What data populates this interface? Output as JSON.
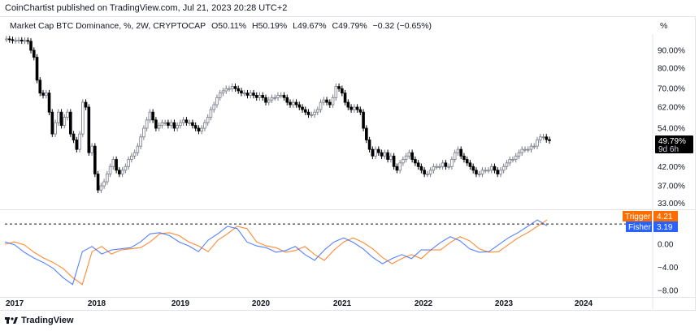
{
  "header": {
    "published": "CoinChartist published on TradingView.com, Jul 21, 2023 20:28 UTC+2"
  },
  "legend": {
    "symbol": "Market Cap BTC Dominance, %, 2W, CRYPTOCAP",
    "open": "O50.11%",
    "high": "H50.19%",
    "low": "L49.67%",
    "close": "C49.79%",
    "change": "−0.32 (−0.65%)"
  },
  "axis_unit": "%",
  "price_tag": {
    "value": "49.79%",
    "countdown": "9d 6h"
  },
  "indicator_labels": {
    "trigger": {
      "name": "Trigger",
      "value": "4.21",
      "color": "#ff6d00"
    },
    "fisher": {
      "name": "Fisher",
      "value": "3.19",
      "color": "#2962ff"
    }
  },
  "footer": {
    "brand": "TradingView"
  },
  "chart_data": [
    {
      "type": "candlestick",
      "title": "Market Cap BTC Dominance, %, 2W, CRYPTOCAP",
      "interval": "2W",
      "yscale": "log",
      "yticks": [
        "90.00%",
        "80.00%",
        "70.00%",
        "62.00%",
        "54.00%",
        "42.00%",
        "37.00%",
        "33.00%"
      ],
      "ytick_values": [
        90,
        80,
        70,
        62,
        54,
        42,
        37,
        33
      ],
      "ylim": [
        31,
        100
      ],
      "xticks": [
        "2017",
        "2018",
        "2019",
        "2020",
        "2021",
        "2022",
        "2023",
        "2024"
      ],
      "closes": [
        97,
        96.5,
        96,
        96,
        96.2,
        95.8,
        96,
        95.5,
        90,
        86,
        74,
        68,
        67,
        68,
        60,
        52,
        56,
        60,
        55,
        58,
        60,
        52,
        50,
        47,
        52,
        64,
        62,
        46,
        48,
        40,
        36,
        37,
        38,
        40,
        42,
        44,
        41,
        40,
        41,
        42,
        44,
        45,
        46,
        48,
        51,
        54,
        57,
        60,
        57,
        54,
        55,
        56,
        56,
        55,
        56,
        54,
        55,
        56,
        57,
        56,
        56,
        55,
        54,
        53,
        54,
        56,
        58,
        61,
        63,
        66,
        68,
        69,
        70,
        70,
        71,
        70,
        69,
        68,
        68,
        67,
        68,
        67,
        66,
        67,
        66,
        64,
        65,
        66,
        66,
        67,
        67,
        66,
        64,
        63,
        64,
        63,
        62,
        61,
        60,
        59,
        59,
        60,
        61,
        64,
        65,
        64,
        63,
        66,
        71,
        70,
        68,
        64,
        62,
        61,
        62,
        61,
        60,
        54,
        50,
        47,
        45,
        47,
        46,
        45,
        46,
        44,
        45,
        42,
        41,
        43,
        44,
        45,
        46,
        44,
        43,
        42,
        41,
        40,
        40,
        41,
        42,
        42,
        42,
        43,
        42,
        42,
        44,
        46,
        47,
        45,
        44,
        43,
        42,
        41,
        40,
        40,
        41,
        41,
        41,
        42,
        41,
        40,
        41,
        42,
        43,
        44,
        44,
        45,
        46,
        47,
        47,
        47,
        48,
        48,
        50,
        51,
        51,
        50.11,
        49.79
      ],
      "last_close": 49.79
    },
    {
      "type": "line",
      "title": "Fisher Transform",
      "yticks": [
        "0.00",
        "−4.00",
        "−8.00"
      ],
      "ytick_values": [
        0,
        -4,
        -8
      ],
      "ylim": [
        -9,
        5.5
      ],
      "reference_level": 3.5,
      "series": [
        {
          "name": "Fisher",
          "color": "#2962ff",
          "values": [
            0.4,
            -0.1,
            -1.4,
            -2.4,
            -3.2,
            -4.2,
            -5.8,
            -7.0,
            -1.3,
            -0.4,
            -1.7,
            -1.0,
            -0.8,
            -0.6,
            0.4,
            1.8,
            2.0,
            1.5,
            0.4,
            -0.3,
            -1.3,
            0.7,
            1.8,
            3.1,
            2.7,
            0.4,
            -0.3,
            -0.6,
            -1.4,
            -1.1,
            -0.4,
            -1.8,
            -2.8,
            -1.0,
            0.4,
            1.1,
            0.3,
            -0.8,
            -2.3,
            -3.4,
            -2.5,
            -1.8,
            -2.5,
            -1.0,
            -1.0,
            0.3,
            1.3,
            0.6,
            -0.8,
            -1.4,
            -1.3,
            -0.1,
            1.1,
            2.0,
            3.1,
            4.21,
            3.19
          ]
        },
        {
          "name": "Trigger",
          "color": "#ff6d00",
          "values": [
            0.0,
            0.4,
            -0.1,
            -1.4,
            -2.4,
            -3.2,
            -4.2,
            -5.8,
            -7.0,
            -1.3,
            -0.4,
            -1.7,
            -1.0,
            -0.8,
            -0.6,
            0.4,
            1.8,
            2.0,
            1.5,
            0.4,
            -0.3,
            -1.3,
            0.7,
            1.8,
            3.1,
            2.7,
            0.4,
            -0.3,
            -0.6,
            -1.4,
            -1.1,
            -0.4,
            -1.8,
            -2.8,
            -1.0,
            0.4,
            1.1,
            0.3,
            -0.8,
            -2.3,
            -3.4,
            -2.5,
            -1.8,
            -2.5,
            -1.0,
            -1.0,
            0.3,
            1.3,
            0.6,
            -0.8,
            -1.4,
            -1.3,
            -0.1,
            1.1,
            2.0,
            3.1,
            4.21
          ]
        }
      ]
    }
  ]
}
